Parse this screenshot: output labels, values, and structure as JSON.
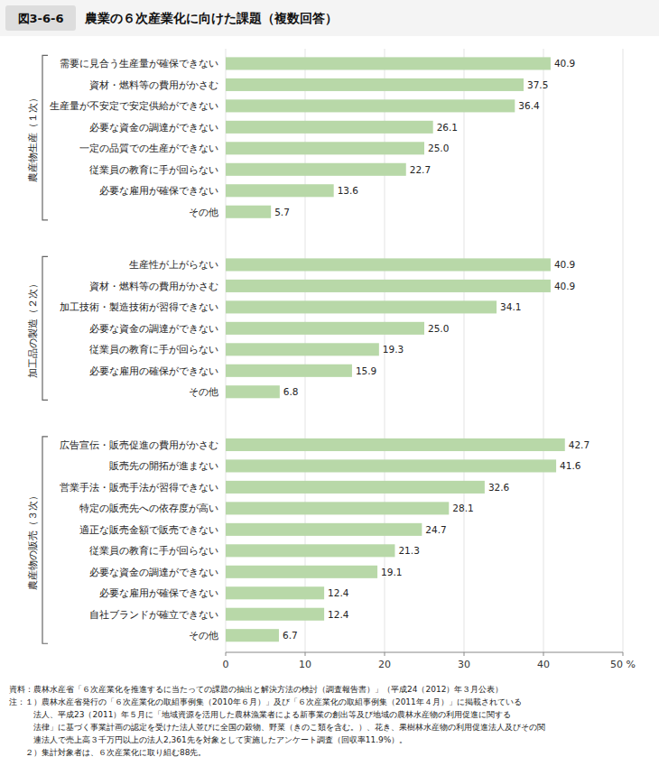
{
  "chart_data": {
    "type": "bar",
    "orientation": "horizontal",
    "figure_label": "図3-6-6",
    "title": "農業の６次産業化に向けた課題（複数回答）",
    "color": "#b8d8a8",
    "data_labels": true,
    "grid": true,
    "xlim": [
      0,
      50
    ],
    "xticks": [
      0,
      10,
      20,
      30,
      40,
      {
        "value": 50,
        "label": "50 %"
      }
    ],
    "groups": [
      {
        "label": "農産物生産（１次）",
        "categories": [
          "需要に見合う生産量が確保できない",
          "資材・燃料等の費用がかさむ",
          "生産量が不安定で安定供給ができない",
          "必要な資金の調達ができない",
          "一定の品質での生産ができない",
          "従業員の教育に手が回らない",
          "必要な雇用が確保できない",
          "その他"
        ],
        "values": [
          40.9,
          37.5,
          36.4,
          26.1,
          25.0,
          22.7,
          13.6,
          5.7
        ],
        "value_labels": [
          "40.9",
          "37.5",
          "36.4",
          "26.1",
          "25.0",
          "22.7",
          "13.6",
          "5.7"
        ]
      },
      {
        "label": "加工品の製造（２次）",
        "categories": [
          "生産性が上がらない",
          "資材・燃料等の費用がかさむ",
          "加工技術・製造技術が習得できない",
          "必要な資金の調達ができない",
          "従業員の教育に手が回らない",
          "必要な雇用の確保ができない",
          "その他"
        ],
        "values": [
          40.9,
          40.9,
          34.1,
          25.0,
          19.3,
          15.9,
          6.8
        ],
        "value_labels": [
          "40.9",
          "40.9",
          "34.1",
          "25.0",
          "19.3",
          "15.9",
          "6.8"
        ]
      },
      {
        "label": "農産物の販売（３次）",
        "categories": [
          "広告宣伝・販売促進の費用がかさむ",
          "販売先の開拓が進まない",
          "営業手法・販売手法が習得できない",
          "特定の販売先への依存度が高い",
          "適正な販売金額で販売できない",
          "従業員の教育に手が回らない",
          "必要な資金の調達ができない",
          "必要な雇用が確保できない",
          "自社ブランドが確立できない",
          "その他"
        ],
        "values": [
          42.7,
          41.6,
          32.6,
          28.1,
          24.7,
          21.3,
          19.1,
          12.4,
          12.4,
          6.7
        ],
        "value_labels": [
          "42.7",
          "41.6",
          "32.6",
          "28.1",
          "24.7",
          "21.3",
          "19.1",
          "12.4",
          "12.4",
          "6.7"
        ]
      }
    ],
    "notes": [
      "資料：農林水産省「６次産業化を推進するに当たっての課題の抽出と解決方法の検討（調査報告書）」（平成24（2012）年３月公表）",
      "注：１）農林水産省発行の「６次産業化の取組事例集（2010年６月）」及び「６次産業化の取組事例集（2011年４月）」に掲載されている",
      "　　　法人、平成23（2011）年５月に「地域資源を活用した農林漁業者による新事業の創出等及び地域の農林水産物の利用促進に関する",
      "　　　法律」に基づく事業計画の認定を受けた法人並びに全国の穀物、野菜（きのこ類を含む。）、花き、果樹林水産物の利用促進法人及びその関",
      "　　　連法人で売上高３千万円以上の法人2,361先を対象として実施したアンケート調査（回収率11.9%）。",
      "　　２）集計対象者は、６次産業化に取り組む88先。"
    ]
  }
}
